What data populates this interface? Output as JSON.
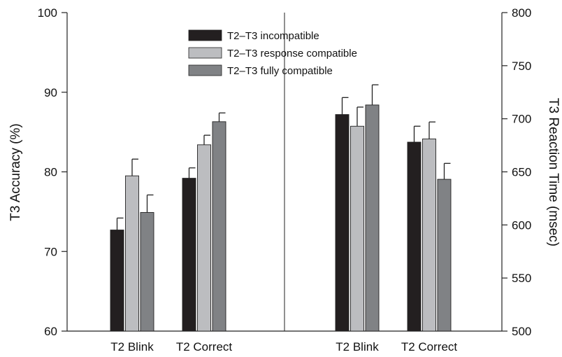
{
  "chart_data": {
    "type": "bar",
    "legend_position": "top-center",
    "grid": false,
    "series_colors": [
      "#231f20",
      "#bcbdc0",
      "#808285"
    ],
    "legend": [
      {
        "name": "T2–T3 incompatible",
        "color": "#231f20"
      },
      {
        "name": "T2–T3 response compatible",
        "color": "#bcbdc0"
      },
      {
        "name": "T2–T3 fully compatible",
        "color": "#808285"
      }
    ],
    "left_axis": {
      "label": "T3 Accuracy (%)",
      "min": 60,
      "max": 100,
      "ticks": [
        60,
        70,
        80,
        90,
        100
      ],
      "tick_labels": [
        "60",
        "70",
        "80",
        "90",
        "100"
      ]
    },
    "right_axis": {
      "label": "T3 Reaction Time (msec)",
      "min": 500,
      "max": 800,
      "ticks": [
        500,
        550,
        600,
        650,
        700,
        750,
        800
      ],
      "tick_labels": [
        "500",
        "550",
        "600",
        "650",
        "700",
        "750",
        "800"
      ]
    },
    "panels": [
      {
        "axis": "left",
        "categories": [
          "T2 Blink",
          "T2 Correct"
        ],
        "series": [
          {
            "values": [
              72.7,
              79.2
            ],
            "errors": [
              1.5,
              1.3
            ]
          },
          {
            "values": [
              79.5,
              83.4
            ],
            "errors": [
              2.1,
              1.2
            ]
          },
          {
            "values": [
              74.9,
              86.3
            ],
            "errors": [
              2.2,
              1.1
            ]
          }
        ]
      },
      {
        "axis": "right",
        "categories": [
          "T2 Blink",
          "T2 Correct"
        ],
        "series": [
          {
            "values": [
              704,
              678
            ],
            "errors": [
              16,
              15
            ]
          },
          {
            "values": [
              693,
              681
            ],
            "errors": [
              18,
              16
            ]
          },
          {
            "values": [
              713,
              643
            ],
            "errors": [
              19,
              15
            ]
          }
        ]
      }
    ]
  }
}
